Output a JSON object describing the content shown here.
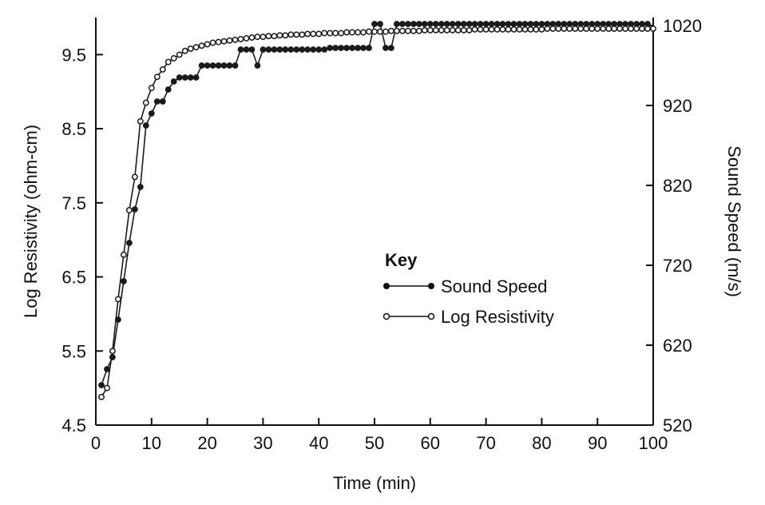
{
  "chart_data": {
    "type": "line",
    "x_axis": {
      "label": "Time (min)",
      "range": [
        0,
        100
      ],
      "ticks": [
        "0",
        "10",
        "20",
        "30",
        "40",
        "50",
        "60",
        "70",
        "80",
        "90",
        "100"
      ]
    },
    "y_axis_left": {
      "label": "Log Resistivity (ohm-cm)",
      "range": [
        4.5,
        10.0
      ],
      "ticks": [
        {
          "value": 4.5,
          "label": "4.5"
        },
        {
          "value": 5.5,
          "label": "5.5"
        },
        {
          "value": 6.5,
          "label": "6.5"
        },
        {
          "value": 7.5,
          "label": "7.5"
        },
        {
          "value": 8.5,
          "label": "8.5"
        },
        {
          "value": 9.5,
          "label": "9.5"
        }
      ]
    },
    "y_axis_right": {
      "label": "Sound Speed (m/s)",
      "range": [
        520,
        1030
      ],
      "ticks": [
        {
          "value": 520,
          "label": "520"
        },
        {
          "value": 620,
          "label": "620"
        },
        {
          "value": 720,
          "label": "720"
        },
        {
          "value": 820,
          "label": "820"
        },
        {
          "value": 920,
          "label": "920"
        },
        {
          "value": 1020,
          "label": "1020"
        }
      ]
    },
    "legend": {
      "title": "Key",
      "placement": "center-right",
      "entries": [
        "Sound Speed",
        "Log Resistivity"
      ]
    },
    "series": [
      {
        "name": "Sound Speed",
        "axis": "right",
        "marker": "filled-circle",
        "color": "#1a1a1a",
        "x": [
          1,
          2,
          3,
          4,
          5,
          6,
          7,
          8,
          9,
          10,
          11,
          12,
          13,
          14,
          15,
          16,
          17,
          18,
          19,
          20,
          21,
          22,
          23,
          24,
          25,
          26,
          27,
          28,
          29,
          30,
          31,
          32,
          33,
          34,
          35,
          36,
          37,
          38,
          39,
          40,
          41,
          42,
          43,
          44,
          45,
          46,
          47,
          48,
          49,
          50,
          51,
          52,
          53,
          54,
          55,
          56,
          57,
          58,
          59,
          60,
          61,
          62,
          63,
          64,
          65,
          66,
          67,
          68,
          69,
          70,
          71,
          72,
          73,
          74,
          75,
          76,
          77,
          78,
          79,
          80,
          81,
          82,
          83,
          84,
          85,
          86,
          87,
          88,
          89,
          90,
          91,
          92,
          93,
          94,
          95,
          96,
          97,
          98,
          99
        ],
        "y": [
          570,
          590,
          605,
          652,
          700,
          748,
          790,
          818,
          895,
          910,
          925,
          925,
          940,
          950,
          955,
          955,
          955,
          955,
          970,
          970,
          970,
          970,
          970,
          970,
          970,
          990,
          990,
          990,
          970,
          990,
          990,
          990,
          990,
          990,
          990,
          990,
          990,
          990,
          990,
          990,
          990,
          992,
          992,
          992,
          992,
          992,
          992,
          992,
          992,
          1022,
          1022,
          992,
          992,
          1022,
          1022,
          1022,
          1022,
          1022,
          1022,
          1022,
          1022,
          1022,
          1022,
          1022,
          1022,
          1022,
          1022,
          1022,
          1022,
          1022,
          1022,
          1022,
          1022,
          1022,
          1022,
          1022,
          1022,
          1022,
          1022,
          1022,
          1022,
          1022,
          1022,
          1022,
          1022,
          1022,
          1022,
          1022,
          1022,
          1022,
          1022,
          1022,
          1022,
          1022,
          1022,
          1022,
          1022,
          1022,
          1022
        ]
      },
      {
        "name": "Log Resistivity",
        "axis": "left",
        "marker": "open-circle",
        "color": "#1a1a1a",
        "x": [
          1,
          2,
          3,
          4,
          5,
          6,
          7,
          8,
          9,
          10,
          11,
          12,
          13,
          14,
          15,
          16,
          17,
          18,
          19,
          20,
          21,
          22,
          23,
          24,
          25,
          26,
          27,
          28,
          29,
          30,
          31,
          32,
          33,
          34,
          35,
          36,
          37,
          38,
          39,
          40,
          41,
          42,
          43,
          44,
          45,
          46,
          47,
          48,
          49,
          50,
          51,
          52,
          53,
          54,
          55,
          56,
          57,
          58,
          59,
          60,
          61,
          62,
          63,
          64,
          65,
          66,
          67,
          68,
          69,
          70,
          71,
          72,
          73,
          74,
          75,
          76,
          77,
          78,
          79,
          80,
          81,
          82,
          83,
          84,
          85,
          86,
          87,
          88,
          89,
          90,
          91,
          92,
          93,
          94,
          95,
          96,
          97,
          98,
          99,
          100
        ],
        "y": [
          4.88,
          5.0,
          5.5,
          6.2,
          6.8,
          7.4,
          7.85,
          8.6,
          8.85,
          9.05,
          9.2,
          9.3,
          9.4,
          9.45,
          9.5,
          9.55,
          9.58,
          9.6,
          9.62,
          9.64,
          9.66,
          9.67,
          9.68,
          9.69,
          9.7,
          9.71,
          9.72,
          9.73,
          9.74,
          9.74,
          9.75,
          9.75,
          9.76,
          9.76,
          9.77,
          9.77,
          9.77,
          9.78,
          9.78,
          9.78,
          9.79,
          9.79,
          9.79,
          9.79,
          9.8,
          9.8,
          9.8,
          9.8,
          9.81,
          9.81,
          9.81,
          9.81,
          9.82,
          9.82,
          9.82,
          9.82,
          9.82,
          9.82,
          9.83,
          9.83,
          9.83,
          9.83,
          9.83,
          9.83,
          9.83,
          9.83,
          9.83,
          9.84,
          9.84,
          9.84,
          9.84,
          9.84,
          9.84,
          9.84,
          9.84,
          9.84,
          9.84,
          9.84,
          9.84,
          9.84,
          9.85,
          9.85,
          9.85,
          9.85,
          9.85,
          9.85,
          9.85,
          9.85,
          9.85,
          9.85,
          9.85,
          9.85,
          9.85,
          9.85,
          9.85,
          9.85,
          9.85,
          9.85,
          9.85,
          9.85
        ]
      }
    ]
  }
}
